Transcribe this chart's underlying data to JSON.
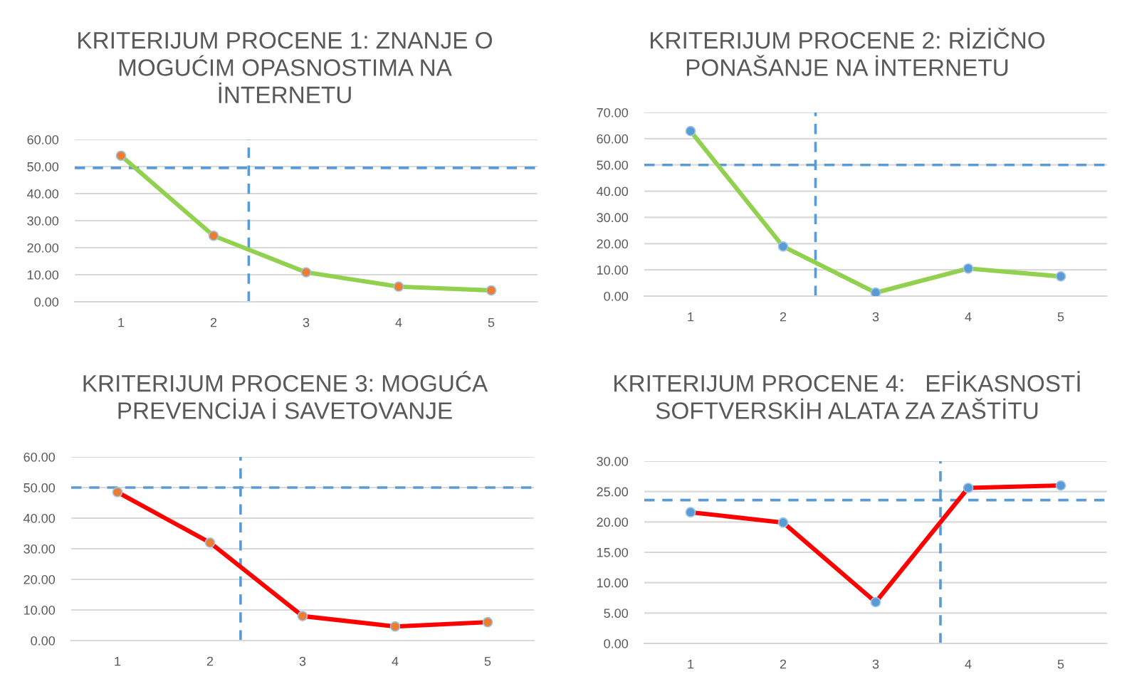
{
  "chart_data": [
    {
      "type": "line",
      "title": "KRITERIJUM PROCENE 1: ZNANJE O MOGUĆIM OPASNOSTIMA NA İNTERNETU",
      "x": [
        1,
        2,
        3,
        4,
        5
      ],
      "xlim": [
        0.5,
        5.5
      ],
      "xticks": [
        1,
        2,
        3,
        4,
        5
      ],
      "series": [
        {
          "color": "#92d050",
          "colors": [
            "#ed7d31",
            "#ed7d31",
            "#ed7d31",
            "#ed7d31",
            "#ed7d31"
          ],
          "values": [
            54.0,
            24.4,
            10.9,
            5.6,
            4.2
          ]
        }
      ],
      "ylim": [
        0,
        60
      ],
      "yticks": [
        {
          "value": 0,
          "label": "0.00"
        },
        {
          "value": 10,
          "label": "10.00"
        },
        {
          "value": 20,
          "label": "20.00"
        },
        {
          "value": 30,
          "label": "30.00"
        },
        {
          "value": 40,
          "label": "40.00"
        },
        {
          "value": 50,
          "label": "50.00"
        },
        {
          "value": 60,
          "label": "60.00"
        }
      ],
      "ref_lines": [
        {
          "axis": "y",
          "value": 49.5,
          "color": "#5b9bd5",
          "line_style": "dashed"
        },
        {
          "axis": "x",
          "value": 2.38,
          "color": "#5b9bd5",
          "line_style": "dashed"
        }
      ],
      "grid": "y",
      "marker": "circle",
      "line_style": "solid"
    },
    {
      "type": "line",
      "title": "KRITERIJUM PROCENE 2: RİZİČNO PONAŠANJE NA İNTERNETU",
      "x": [
        1,
        2,
        3,
        4,
        5
      ],
      "xlim": [
        0.5,
        5.5
      ],
      "xticks": [
        1,
        2,
        3,
        4,
        5
      ],
      "series": [
        {
          "color": "#92d050",
          "colors": [
            "#5b9bd5",
            "#5b9bd5",
            "#5b9bd5",
            "#5b9bd5",
            "#5b9bd5"
          ],
          "values": [
            62.9,
            18.9,
            1.3,
            10.5,
            7.5
          ]
        }
      ],
      "ylim": [
        0,
        70
      ],
      "yticks": [
        {
          "value": 0,
          "label": "0.00"
        },
        {
          "value": 10,
          "label": "10.00"
        },
        {
          "value": 20,
          "label": "20.00"
        },
        {
          "value": 30,
          "label": "30.00"
        },
        {
          "value": 40,
          "label": "40.00"
        },
        {
          "value": 50,
          "label": "50.00"
        },
        {
          "value": 60,
          "label": "60.00"
        },
        {
          "value": 70,
          "label": "70.00"
        }
      ],
      "ref_lines": [
        {
          "axis": "y",
          "value": 50,
          "color": "#5b9bd5",
          "line_style": "dashed"
        },
        {
          "axis": "x",
          "value": 2.35,
          "color": "#5b9bd5",
          "line_style": "dashed"
        }
      ],
      "grid": "y",
      "marker": "circle",
      "line_style": "solid"
    },
    {
      "type": "line",
      "title": "KRITERIJUM PROCENE 3: MOGUĆA PREVENCİJA İ SAVETOVANJE",
      "x": [
        1,
        2,
        3,
        4,
        5
      ],
      "xlim": [
        0.5,
        5.5
      ],
      "xticks": [
        1,
        2,
        3,
        4,
        5
      ],
      "series": [
        {
          "color": "#ff0000",
          "colors": [
            "#ed7d31",
            "#ed7d31",
            "#ed7d31",
            "#ed7d31",
            "#ed7d31"
          ],
          "values": [
            48.5,
            32.0,
            8.0,
            4.6,
            6.0
          ]
        }
      ],
      "ylim": [
        0,
        60
      ],
      "yticks": [
        {
          "value": 0,
          "label": "0.00"
        },
        {
          "value": 10,
          "label": "10.00"
        },
        {
          "value": 20,
          "label": "20.00"
        },
        {
          "value": 30,
          "label": "30.00"
        },
        {
          "value": 40,
          "label": "40.00"
        },
        {
          "value": 50,
          "label": "50.00"
        },
        {
          "value": 60,
          "label": "60.00"
        }
      ],
      "ref_lines": [
        {
          "axis": "y",
          "value": 50,
          "color": "#5b9bd5",
          "line_style": "dashed"
        },
        {
          "axis": "x",
          "value": 2.33,
          "color": "#5b9bd5",
          "line_style": "dashed"
        }
      ],
      "grid": "y",
      "marker": "circle",
      "line_style": "solid"
    },
    {
      "type": "line",
      "title": "KRITERIJUM PROCENE 4:   EFİKASNOSTİ SOFTVERSKİH ALATA ZA ZAŠTİTU",
      "x": [
        1,
        2,
        3,
        4,
        5
      ],
      "xlim": [
        0.5,
        5.5
      ],
      "xticks": [
        1,
        2,
        3,
        4,
        5
      ],
      "series": [
        {
          "color": "#ff0000",
          "colors": [
            "#5b9bd5",
            "#5b9bd5",
            "#5b9bd5",
            "#5b9bd5",
            "#5b9bd5"
          ],
          "values": [
            21.6,
            19.9,
            6.8,
            25.6,
            26.0
          ]
        }
      ],
      "ylim": [
        0,
        30
      ],
      "yticks": [
        {
          "value": 0,
          "label": "0.00"
        },
        {
          "value": 5,
          "label": "5.00"
        },
        {
          "value": 10,
          "label": "10.00"
        },
        {
          "value": 15,
          "label": "15.00"
        },
        {
          "value": 20,
          "label": "20.00"
        },
        {
          "value": 25,
          "label": "25.00"
        },
        {
          "value": 30,
          "label": "30.00"
        }
      ],
      "ref_lines": [
        {
          "axis": "y",
          "value": 23.6,
          "color": "#5b9bd5",
          "line_style": "dashed"
        },
        {
          "axis": "x",
          "value": 3.7,
          "color": "#5b9bd5",
          "line_style": "dashed"
        }
      ],
      "grid": "y",
      "marker": "circle",
      "line_style": "solid"
    }
  ]
}
